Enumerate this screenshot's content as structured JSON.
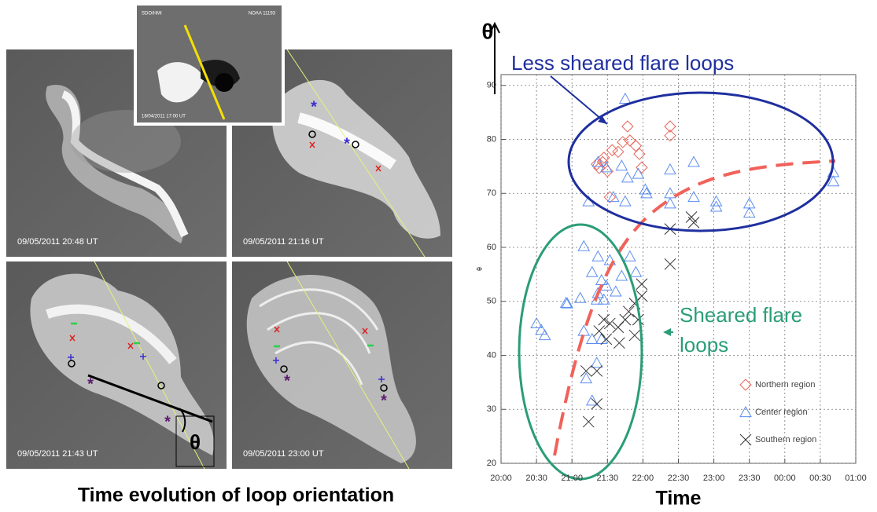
{
  "figure": {
    "caption": "Time evolution of loop orientation",
    "inset": {
      "left_label": "SDO/HMI",
      "right_label": "NOAA 11193",
      "timestamp": "18/04/2011 17:00 UT"
    },
    "panels": [
      {
        "timestamp": "09/05/2011 20:48 UT"
      },
      {
        "timestamp": "09/05/2011 21:16 UT"
      },
      {
        "timestamp": "09/05/2011 21:43 UT",
        "angle_label": "θ"
      },
      {
        "timestamp": "09/05/2011 23:00 UT"
      }
    ]
  },
  "chart_data": {
    "type": "scatter",
    "axis_title": "θ",
    "ylabel": "θ",
    "xlabel": "Time",
    "annotations": [
      {
        "lines": [
          "Less sheared flare loops"
        ],
        "color": "#1f2f9e"
      },
      {
        "lines": [
          "Sheared flare",
          "loops"
        ],
        "color": "#2a9d78"
      }
    ],
    "xlim": [
      1200,
      1500
    ],
    "xticks": [
      {
        "value": 1200,
        "label": "20:00"
      },
      {
        "value": 1230,
        "label": "20:30"
      },
      {
        "value": 1260,
        "label": "21:00"
      },
      {
        "value": 1290,
        "label": "21:30"
      },
      {
        "value": 1320,
        "label": "22:00"
      },
      {
        "value": 1350,
        "label": "22:30"
      },
      {
        "value": 1380,
        "label": "23:00"
      },
      {
        "value": 1410,
        "label": "23:30"
      },
      {
        "value": 1440,
        "label": "00:00"
      },
      {
        "value": 1470,
        "label": "00:30"
      },
      {
        "value": 1500,
        "label": "01:00"
      }
    ],
    "ylim": [
      20,
      92
    ],
    "yticks": [
      20,
      30,
      40,
      50,
      60,
      70,
      80,
      90
    ],
    "grid": true,
    "legend": "lower right",
    "series": [
      {
        "name": "Northern region",
        "color": "#e8645a",
        "marker": "diamond",
        "x": [
          1281,
          1283,
          1286,
          1290,
          1292,
          1287,
          1294,
          1299,
          1303,
          1307,
          1309,
          1314,
          1317,
          1319,
          1343,
          1343
        ],
        "values": [
          75.4,
          74.7,
          75.8,
          74.1,
          69.3,
          76.6,
          78,
          77.7,
          79.5,
          82.4,
          79.8,
          78.8,
          77.3,
          74.8,
          82.4,
          80.7
        ]
      },
      {
        "name": "Center region",
        "color": "#5b8def",
        "marker": "triangle",
        "x": [
          1305,
          1282,
          1289,
          1302,
          1307,
          1316,
          1322,
          1323,
          1343,
          1343,
          1343,
          1363,
          1363,
          1382,
          1382,
          1410,
          1410,
          1481,
          1481,
          1274,
          1295,
          1305,
          1270,
          1282,
          1292,
          1309,
          1277,
          1285,
          1289,
          1297,
          1302,
          1314,
          1267,
          1281,
          1287,
          1270,
          1255,
          1256,
          1230,
          1234,
          1237,
          1277,
          1285,
          1281,
          1272,
          1277,
          1282
        ],
        "values": [
          87.5,
          75.8,
          74.8,
          75.1,
          72.9,
          73.6,
          70.7,
          70,
          74.4,
          70,
          68.1,
          75.8,
          69.3,
          68.5,
          67.5,
          68.1,
          66.4,
          73.9,
          72.2,
          68.5,
          69.3,
          68.5,
          60.2,
          58.3,
          57.6,
          58.3,
          55.4,
          53.9,
          52.9,
          51.8,
          54.7,
          55.4,
          50.6,
          50.3,
          50.3,
          44.5,
          49.7,
          49.6,
          45.9,
          44.7,
          43.7,
          43,
          43,
          38.6,
          35.7,
          31.6,
          51.5
        ]
      },
      {
        "name": "Southern region",
        "color": "#333333",
        "marker": "x",
        "x": [
          1343,
          1343,
          1361,
          1363,
          1319,
          1319,
          1313,
          1308,
          1305,
          1299,
          1292,
          1287,
          1283,
          1289,
          1300,
          1313,
          1316,
          1281,
          1272,
          1281,
          1274
        ],
        "values": [
          63.4,
          56.9,
          65.6,
          64.6,
          53.2,
          51,
          49.6,
          48.1,
          46.6,
          45.2,
          45.9,
          46.6,
          44.5,
          43,
          42.3,
          43.7,
          46.6,
          37.1,
          37.1,
          31,
          27.7
        ]
      }
    ]
  }
}
